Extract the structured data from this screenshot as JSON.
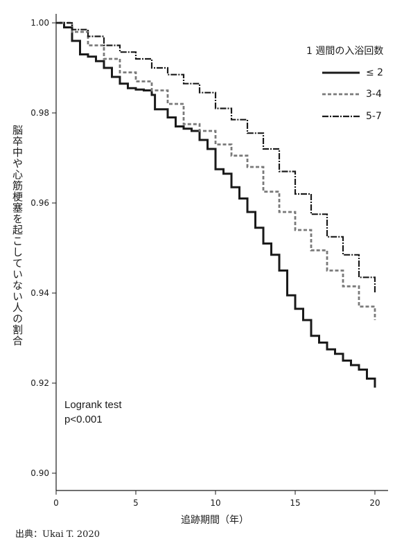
{
  "chart_data": {
    "type": "line",
    "title": "",
    "ylabel": "脳卒中や心筋梗塞を起こしていない人の割合",
    "xlabel": "追跡期間（年）",
    "xlim": [
      0,
      20
    ],
    "ylim": [
      0.9,
      1.0
    ],
    "x_ticks": [
      "0",
      "5",
      "10",
      "15",
      "20"
    ],
    "y_ticks": [
      "1.00",
      "0.98",
      "0.96",
      "0.94",
      "0.92",
      "0.90"
    ],
    "grid": false,
    "legend_title": "1 週間の入浴回数",
    "legend_position": "top-right",
    "annotation": [
      "Logrank test",
      "p<0.001"
    ],
    "source": "出典：Ukai T. 2020",
    "series": [
      {
        "name": "≤ 2",
        "style": "solid",
        "color": "#1a1a1a",
        "points": [
          [
            0,
            1.0
          ],
          [
            0.5,
            0.999
          ],
          [
            1,
            0.996
          ],
          [
            1.5,
            0.993
          ],
          [
            2,
            0.9925
          ],
          [
            2.5,
            0.9915
          ],
          [
            3,
            0.99
          ],
          [
            3.5,
            0.988
          ],
          [
            4,
            0.9865
          ],
          [
            4.5,
            0.9855
          ],
          [
            5,
            0.9852
          ],
          [
            5.5,
            0.985
          ],
          [
            6,
            0.984
          ],
          [
            6.2,
            0.9808
          ],
          [
            7,
            0.979
          ],
          [
            7.5,
            0.977
          ],
          [
            8,
            0.9765
          ],
          [
            8.5,
            0.976
          ],
          [
            9,
            0.974
          ],
          [
            9.5,
            0.972
          ],
          [
            10,
            0.9675
          ],
          [
            10.5,
            0.9665
          ],
          [
            11,
            0.9635
          ],
          [
            11.5,
            0.961
          ],
          [
            12,
            0.958
          ],
          [
            12.5,
            0.9545
          ],
          [
            13,
            0.951
          ],
          [
            13.5,
            0.9485
          ],
          [
            14,
            0.945
          ],
          [
            14.5,
            0.9395
          ],
          [
            15,
            0.9365
          ],
          [
            15.5,
            0.934
          ],
          [
            16,
            0.9305
          ],
          [
            16.5,
            0.929
          ],
          [
            17,
            0.9275
          ],
          [
            17.5,
            0.9265
          ],
          [
            18,
            0.925
          ],
          [
            18.5,
            0.924
          ],
          [
            19,
            0.923
          ],
          [
            19.5,
            0.921
          ],
          [
            20,
            0.919
          ]
        ]
      },
      {
        "name": "3-4",
        "style": "dashed",
        "color": "#7a7a7a",
        "points": [
          [
            0,
            1.0
          ],
          [
            1,
            0.998
          ],
          [
            2,
            0.995
          ],
          [
            3,
            0.992
          ],
          [
            4,
            0.989
          ],
          [
            5,
            0.987
          ],
          [
            6,
            0.985
          ],
          [
            7,
            0.982
          ],
          [
            8,
            0.9775
          ],
          [
            9,
            0.976
          ],
          [
            10,
            0.973
          ],
          [
            11,
            0.9705
          ],
          [
            12,
            0.968
          ],
          [
            13,
            0.9625
          ],
          [
            14,
            0.958
          ],
          [
            15,
            0.954
          ],
          [
            16,
            0.9495
          ],
          [
            17,
            0.945
          ],
          [
            18,
            0.9415
          ],
          [
            19,
            0.937
          ],
          [
            20,
            0.934
          ]
        ]
      },
      {
        "name": "5-7",
        "style": "dash-dot",
        "color": "#1a1a1a",
        "points": [
          [
            0,
            1.0
          ],
          [
            1,
            0.9985
          ],
          [
            2,
            0.997
          ],
          [
            3,
            0.995
          ],
          [
            4,
            0.9935
          ],
          [
            5,
            0.992
          ],
          [
            6,
            0.99
          ],
          [
            7,
            0.9885
          ],
          [
            8,
            0.9865
          ],
          [
            9,
            0.9845
          ],
          [
            10,
            0.981
          ],
          [
            11,
            0.9785
          ],
          [
            12,
            0.9755
          ],
          [
            13,
            0.972
          ],
          [
            14,
            0.967
          ],
          [
            15,
            0.962
          ],
          [
            16,
            0.9575
          ],
          [
            17,
            0.9525
          ],
          [
            18,
            0.9485
          ],
          [
            19,
            0.9435
          ],
          [
            20,
            0.94
          ]
        ]
      }
    ]
  }
}
